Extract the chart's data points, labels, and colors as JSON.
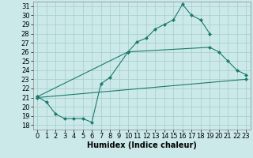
{
  "title": "",
  "xlabel": "Humidex (Indice chaleur)",
  "ylabel": "",
  "bg_color": "#cce9e9",
  "grid_color": "#aacfcf",
  "line_color": "#1a7a6e",
  "xlim": [
    -0.5,
    23.5
  ],
  "ylim": [
    17.5,
    31.5
  ],
  "yticks": [
    18,
    19,
    20,
    21,
    22,
    23,
    24,
    25,
    26,
    27,
    28,
    29,
    30,
    31
  ],
  "xticks": [
    0,
    1,
    2,
    3,
    4,
    5,
    6,
    7,
    8,
    9,
    10,
    11,
    12,
    13,
    14,
    15,
    16,
    17,
    18,
    19,
    20,
    21,
    22,
    23
  ],
  "line1_x": [
    0,
    1,
    2,
    3,
    4,
    5,
    6,
    7,
    8,
    10,
    11,
    12,
    13,
    14,
    15,
    16,
    17,
    18,
    19
  ],
  "line1_y": [
    21.1,
    20.5,
    19.2,
    18.7,
    18.7,
    18.7,
    18.3,
    22.5,
    23.2,
    26.0,
    27.1,
    27.5,
    28.5,
    29.0,
    29.5,
    31.2,
    30.0,
    29.5,
    28.0
  ],
  "line2_x": [
    0,
    10,
    19,
    20,
    21,
    22,
    23
  ],
  "line2_y": [
    21.1,
    26.0,
    26.5,
    26.0,
    25.0,
    24.0,
    23.5
  ],
  "line3_x": [
    0,
    23
  ],
  "line3_y": [
    21.0,
    23.0
  ],
  "tick_fontsize": 6,
  "xlabel_fontsize": 7,
  "marker_size": 2.5,
  "linewidth": 0.8
}
